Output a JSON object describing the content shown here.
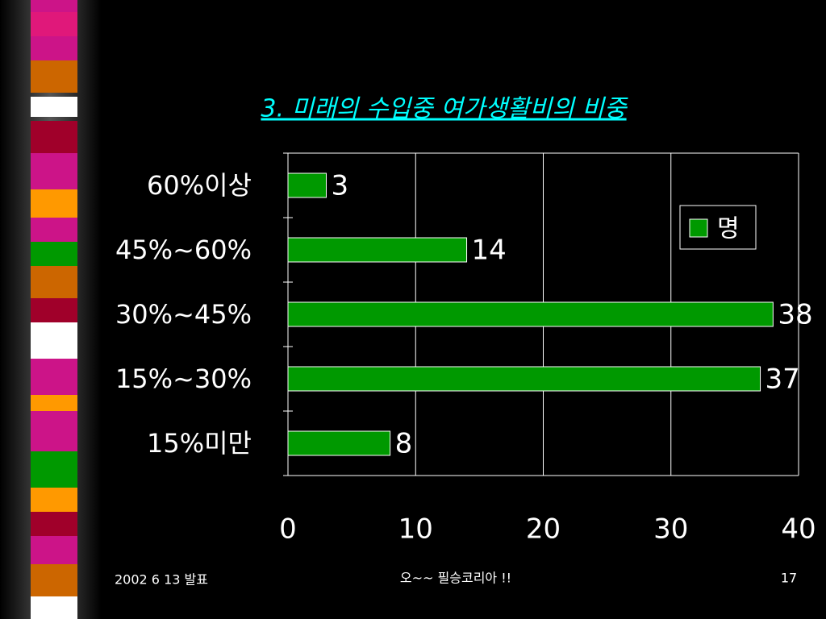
{
  "chart_data": {
    "type": "bar",
    "orientation": "horizontal",
    "title": "3. 미래의 수입중 여가생활비의 비중",
    "categories": [
      "60%이상",
      "45%~60%",
      "30%~45%",
      "15%~30%",
      "15%미만"
    ],
    "series": [
      {
        "name": "명",
        "color": "#009900",
        "values": [
          3,
          14,
          38,
          37,
          8
        ]
      }
    ],
    "xlim": [
      0,
      40
    ],
    "xticks": [
      0,
      10,
      20,
      30,
      40
    ],
    "grid": true,
    "legend": "right"
  },
  "footer": {
    "date": "2002 6 13 발표",
    "text": "오~~ 필승코리아 !!",
    "page": "17"
  }
}
